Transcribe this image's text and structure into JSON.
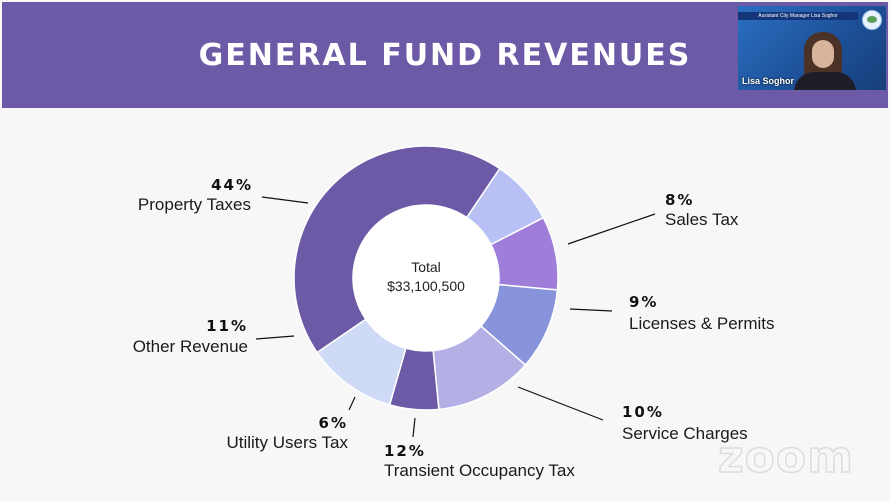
{
  "slide": {
    "title": "GENERAL FUND REVENUES"
  },
  "video_tile": {
    "banner_text": "Assistant City Manager Lisa Soghor",
    "participant_name": "Lisa Soghor"
  },
  "watermark": "zoom",
  "chart_data": {
    "type": "pie",
    "donut": true,
    "title": "GENERAL FUND REVENUES",
    "center_label": "Total",
    "center_value": "$33,100,500",
    "slices": [
      {
        "label": "Property Taxes",
        "percent_text": "44%",
        "value": 44,
        "color": "#6c5aa6"
      },
      {
        "label": "Sales Tax",
        "percent_text": "8%",
        "value": 8,
        "color": "#b8c0f4"
      },
      {
        "label": "Licenses & Permits",
        "percent_text": "9%",
        "value": 9,
        "color": "#9f7ed9"
      },
      {
        "label": "Service Charges",
        "percent_text": "10%",
        "value": 10,
        "color": "#8794dc"
      },
      {
        "label": "Transient Occupancy Tax",
        "percent_text": "12%",
        "value": 12,
        "color": "#b4b0e6"
      },
      {
        "label": "Utility Users Tax",
        "percent_text": "6%",
        "value": 6,
        "color": "#6c5aa6"
      },
      {
        "label": "Other Revenue",
        "percent_text": "11%",
        "value": 11,
        "color": "#cfdaf7"
      }
    ]
  }
}
